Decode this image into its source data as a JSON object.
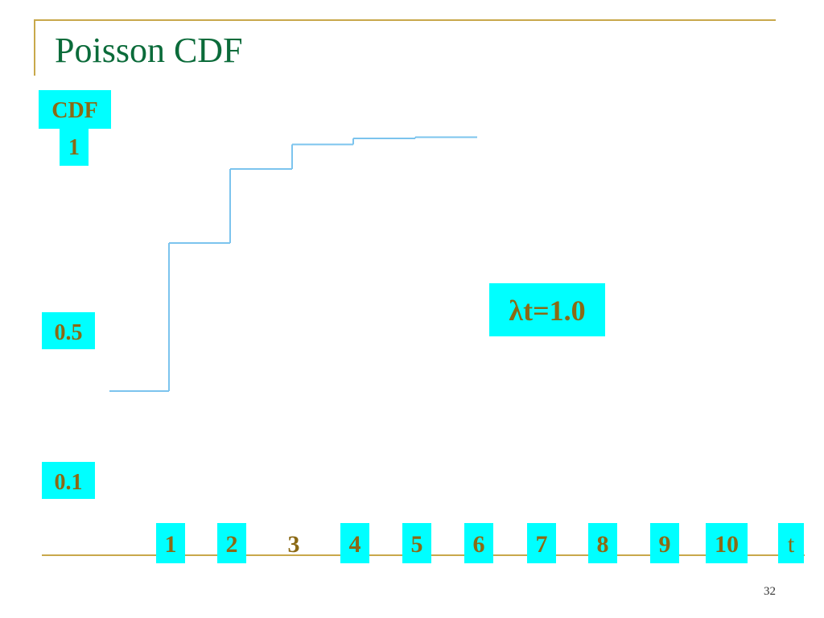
{
  "slide": {
    "title": "Poisson CDF",
    "page_number": "32"
  },
  "chart_data": {
    "type": "line",
    "step": true,
    "ylabel": "CDF",
    "xlabel": "t",
    "annotation": "λt=1.0",
    "x_ticks": [
      {
        "label": "1",
        "highlight": true
      },
      {
        "label": "2",
        "highlight": true
      },
      {
        "label": "3",
        "highlight": false
      },
      {
        "label": "4",
        "highlight": true
      },
      {
        "label": "5",
        "highlight": true
      },
      {
        "label": "6",
        "highlight": true
      },
      {
        "label": "7",
        "highlight": true
      },
      {
        "label": "8",
        "highlight": true
      },
      {
        "label": "9",
        "highlight": true
      },
      {
        "label": "10",
        "highlight": true
      }
    ],
    "y_ticks": [
      "0.1",
      "0.5",
      "1"
    ],
    "x": [
      0,
      1,
      2,
      3,
      4,
      5
    ],
    "y": [
      0.368,
      0.736,
      0.92,
      0.981,
      0.996,
      0.999
    ],
    "grid": false,
    "colors": {
      "line": "#7cc4ee",
      "label_box": "#00ffff",
      "label_text": "#8b6914",
      "axis": "#c8a84b",
      "title": "#0b6b3a"
    }
  }
}
